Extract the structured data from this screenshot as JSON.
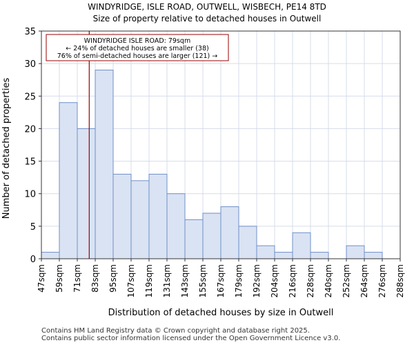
{
  "chart_data": {
    "type": "bar",
    "title": "WINDYRIDGE, ISLE ROAD, OUTWELL, WISBECH, PE14 8TD",
    "subtitle": "Size of property relative to detached houses in Outwell",
    "xlabel": "Distribution of detached houses by size in Outwell",
    "ylabel": "Number of detached properties",
    "bin_edges": [
      47,
      59,
      71,
      83,
      95,
      107,
      119,
      131,
      143,
      155,
      167,
      179,
      192,
      204,
      216,
      228,
      240,
      252,
      264,
      276,
      288
    ],
    "tick_labels": [
      "47sqm",
      "59sqm",
      "71sqm",
      "83sqm",
      "95sqm",
      "107sqm",
      "119sqm",
      "131sqm",
      "143sqm",
      "155sqm",
      "167sqm",
      "179sqm",
      "192sqm",
      "204sqm",
      "216sqm",
      "228sqm",
      "240sqm",
      "252sqm",
      "264sqm",
      "276sqm",
      "288sqm"
    ],
    "values": [
      1,
      24,
      20,
      29,
      13,
      12,
      13,
      10,
      6,
      7,
      8,
      5,
      2,
      1,
      4,
      1,
      0,
      2,
      1,
      0
    ],
    "ylim": [
      0,
      35
    ],
    "yticks": [
      0,
      5,
      10,
      15,
      20,
      25,
      30,
      35
    ],
    "grid": true,
    "bar_fill": "#dae3f3",
    "bar_edge": "#6e8fc9",
    "marker": {
      "value": 79,
      "color": "#990000",
      "annotation": [
        "WINDYRIDGE ISLE ROAD: 79sqm",
        "← 24% of detached houses are smaller (38)",
        "76% of semi-detached houses are larger (121) →"
      ]
    }
  },
  "footer": {
    "line1": "Contains HM Land Registry data © Crown copyright and database right 2025.",
    "line2": "Contains public sector information licensed under the Open Government Licence v3.0."
  }
}
